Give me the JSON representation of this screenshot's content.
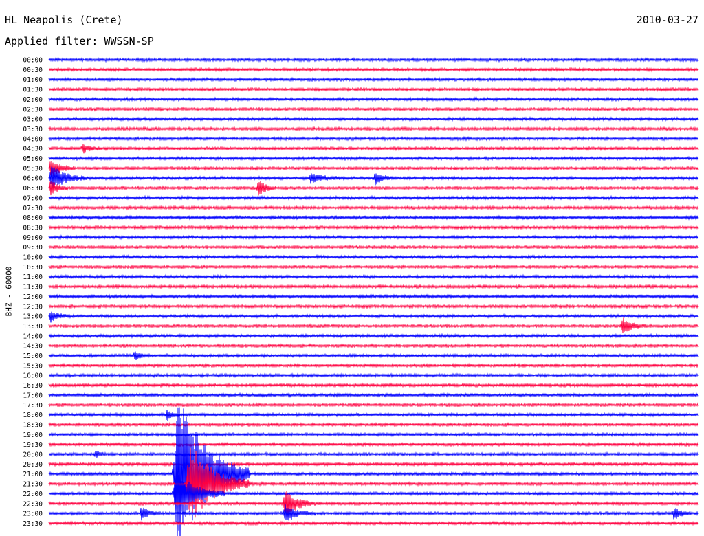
{
  "header": {
    "station": "HL Neapolis (Crete)",
    "date": "2010-03-27",
    "filter": "Applied filter: WWSSN-SP"
  },
  "channel_label": "BHZ - 60000",
  "colors": {
    "even_trace": "#0000ff",
    "odd_trace": "#ff0040"
  },
  "chart_data": {
    "type": "line",
    "description_kind": "helicorder",
    "rows": [
      "00:00",
      "00:30",
      "01:00",
      "01:30",
      "02:00",
      "02:30",
      "03:00",
      "03:30",
      "04:00",
      "04:30",
      "05:00",
      "05:30",
      "06:00",
      "06:30",
      "07:00",
      "07:30",
      "08:00",
      "08:30",
      "09:00",
      "09:30",
      "10:00",
      "10:30",
      "11:00",
      "11:30",
      "12:00",
      "12:30",
      "13:00",
      "13:30",
      "14:00",
      "14:30",
      "15:00",
      "15:30",
      "16:00",
      "16:30",
      "17:00",
      "17:30",
      "18:00",
      "18:30",
      "19:00",
      "19:30",
      "20:00",
      "20:30",
      "21:00",
      "21:30",
      "22:00",
      "22:30",
      "23:00",
      "23:30"
    ],
    "row_minutes": 30,
    "bursts": [
      {
        "row": 9,
        "t": 0.05,
        "amp": 7,
        "dur": 0.03
      },
      {
        "row": 11,
        "t": 0.0,
        "amp": 14,
        "dur": 0.04
      },
      {
        "row": 12,
        "t": 0.0,
        "amp": 18,
        "dur": 0.06
      },
      {
        "row": 12,
        "t": 0.4,
        "amp": 8,
        "dur": 0.05
      },
      {
        "row": 12,
        "t": 0.5,
        "amp": 10,
        "dur": 0.03
      },
      {
        "row": 13,
        "t": 0.0,
        "amp": 12,
        "dur": 0.03
      },
      {
        "row": 13,
        "t": 0.32,
        "amp": 13,
        "dur": 0.03
      },
      {
        "row": 26,
        "t": 0.0,
        "amp": 9,
        "dur": 0.03
      },
      {
        "row": 27,
        "t": 0.88,
        "amp": 12,
        "dur": 0.04
      },
      {
        "row": 30,
        "t": 0.13,
        "amp": 8,
        "dur": 0.02
      },
      {
        "row": 36,
        "t": 0.18,
        "amp": 10,
        "dur": 0.02
      },
      {
        "row": 40,
        "t": 0.07,
        "amp": 6,
        "dur": 0.02
      },
      {
        "row": 42,
        "t": 0.19,
        "amp": 120,
        "dur": 0.12
      },
      {
        "row": 43,
        "t": 0.21,
        "amp": 60,
        "dur": 0.1
      },
      {
        "row": 44,
        "t": 0.19,
        "amp": 30,
        "dur": 0.08
      },
      {
        "row": 45,
        "t": 0.36,
        "amp": 22,
        "dur": 0.05
      },
      {
        "row": 46,
        "t": 0.36,
        "amp": 12,
        "dur": 0.05
      },
      {
        "row": 46,
        "t": 0.14,
        "amp": 9,
        "dur": 0.03
      },
      {
        "row": 46,
        "t": 0.96,
        "amp": 9,
        "dur": 0.03
      }
    ]
  }
}
